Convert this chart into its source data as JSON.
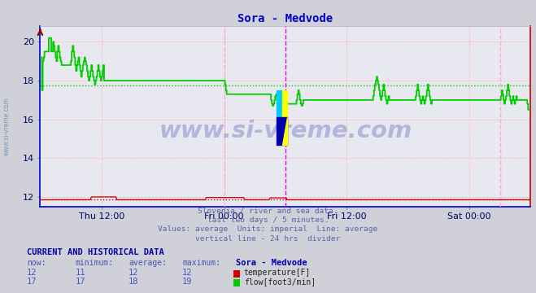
{
  "title": "Sora - Medvode",
  "title_color": "#0000cc",
  "bg_color": "#d0d0d8",
  "plot_bg_color": "#e8e8f0",
  "grid_color": "#ffbbbb",
  "grid_color_minor": "#ddcccc",
  "xlim": [
    0,
    576
  ],
  "ylim": [
    11.5,
    20.8
  ],
  "yticks": [
    12,
    14,
    16,
    18,
    20
  ],
  "xtick_labels": [
    "Thu 12:00",
    "Fri 00:00",
    "Fri 12:00",
    "Sat 00:00"
  ],
  "xtick_positions": [
    72,
    216,
    360,
    504
  ],
  "vline_dashed_color": "#ffaacc",
  "vline_magenta_color": "#ee00ee",
  "temp_avg": 11.85,
  "flow_avg": 17.75,
  "temp_color": "#cc0000",
  "flow_color": "#00cc00",
  "watermark": "www.si-vreme.com",
  "watermark_color": "#3344aa",
  "sidebar_text": "www.si-vreme.com",
  "sidebar_color": "#6688aa",
  "footer_lines": [
    "Slovenia / river and sea data.",
    "last two days / 5 minutes.",
    "Values: average  Units: imperial  Line: average",
    "vertical line - 24 hrs  divider"
  ],
  "footer_color": "#5566aa",
  "table_header_color": "#0000aa",
  "table_label_color": "#4455aa",
  "table_value_color": "#4455cc",
  "now_temp": 12,
  "min_temp": 11,
  "avg_temp": 12,
  "max_temp": 12,
  "now_flow": 17,
  "min_flow": 17,
  "avg_flow": 18,
  "max_flow": 19,
  "logo_colors": {
    "yellow": "#ffff00",
    "cyan": "#00ccff",
    "blue": "#0000aa"
  }
}
